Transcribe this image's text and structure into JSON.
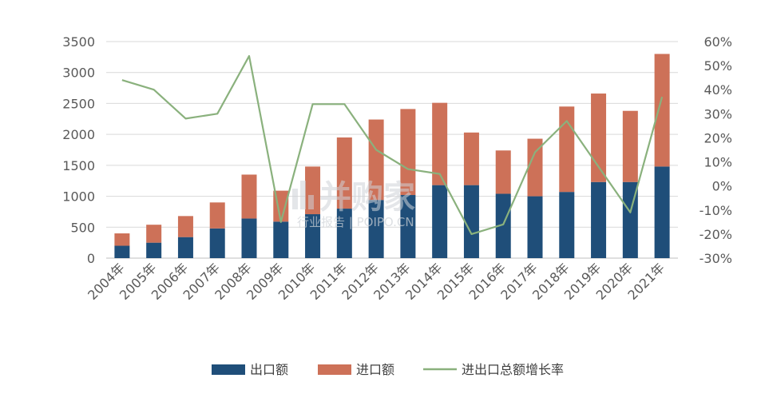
{
  "chart_data": {
    "type": "bar",
    "stacked": true,
    "categories": [
      "2004年",
      "2005年",
      "2006年",
      "2007年",
      "2008年",
      "2009年",
      "2010年",
      "2011年",
      "2012年",
      "2013年",
      "2014年",
      "2015年",
      "2016年",
      "2017年",
      "2018年",
      "2019年",
      "2020年",
      "2021年"
    ],
    "series": [
      {
        "name": "出口额",
        "color": "#1f4e79",
        "values": [
          200,
          250,
          340,
          480,
          640,
          590,
          710,
          800,
          940,
          1020,
          1180,
          1180,
          1040,
          1000,
          1070,
          1230,
          1230,
          1480
        ]
      },
      {
        "name": "进口额",
        "color": "#cd7158",
        "values": [
          200,
          290,
          340,
          420,
          710,
          500,
          770,
          1150,
          1300,
          1390,
          1330,
          850,
          700,
          930,
          1380,
          1430,
          1150,
          1820
        ]
      }
    ],
    "line_series": {
      "name": "进出口总额增长率",
      "color": "#8ab17d",
      "axis": "right",
      "values": [
        44,
        40,
        28,
        30,
        54,
        -15,
        34,
        34,
        15,
        7,
        5,
        -20,
        -16,
        14,
        27,
        8,
        -11,
        37
      ]
    },
    "ylim": [
      0,
      3500
    ],
    "y_ticks": [
      "0",
      "500",
      "1000",
      "1500",
      "2000",
      "2500",
      "3000",
      "3500"
    ],
    "y2lim": [
      -30,
      60
    ],
    "y2_ticks": [
      "-30%",
      "-20%",
      "-10%",
      "0%",
      "10%",
      "20%",
      "30%",
      "40%",
      "50%",
      "60%"
    ],
    "grid": true,
    "legend_position": "bottom"
  },
  "legend": {
    "export_label": "出口额",
    "import_label": "进口额",
    "growth_label": "进出口总额增长率"
  },
  "watermark": {
    "title": "并购家",
    "subtitle": "行业报告 | POIPO.CN"
  }
}
